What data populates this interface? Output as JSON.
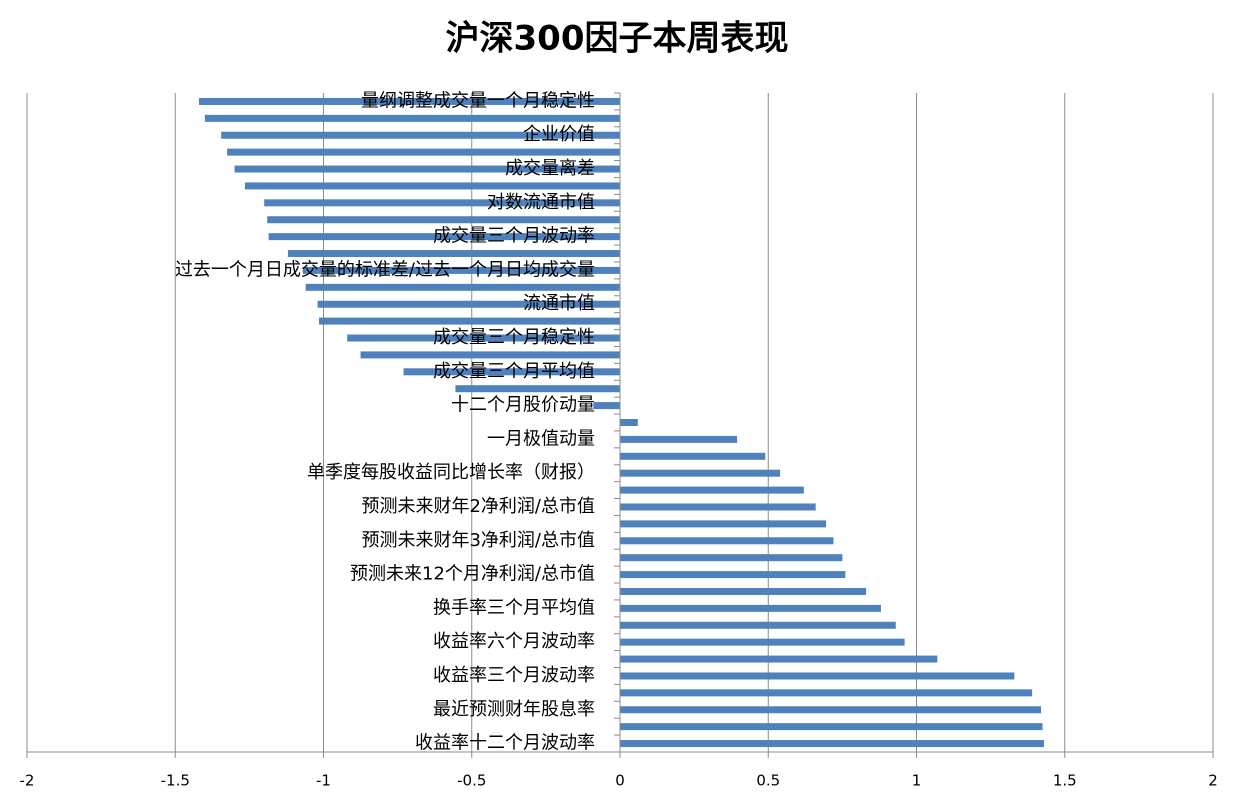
{
  "chart_data": {
    "type": "barh",
    "title": "沪深300因子本周表现",
    "categories": [
      "量纲调整成交量一个月稳定性",
      null,
      "企业价值",
      null,
      "成交量离差",
      null,
      "对数流通市值",
      null,
      "成交量三个月波动率",
      null,
      "过去一个月日成交量的标准差/过去一个月日均成交量",
      null,
      "流通市值",
      null,
      "成交量三个月稳定性",
      null,
      "成交量三个月平均值",
      null,
      "十二个月股价动量",
      null,
      "一月极值动量",
      null,
      "单季度每股收益同比增长率（财报）",
      null,
      "预测未来财年2净利润/总市值",
      null,
      "预测未来财年3净利润/总市值",
      null,
      "预测未来12个月净利润/总市值",
      null,
      "换手率三个月平均值",
      null,
      "收益率六个月波动率",
      null,
      "收益率三个月波动率",
      null,
      "最近预测财年股息率",
      null,
      "收益率十二个月波动率"
    ],
    "values": [
      -1.42,
      -1.4,
      -1.345,
      -1.325,
      -1.3,
      -1.265,
      -1.2,
      -1.19,
      -1.185,
      -1.12,
      -1.07,
      -1.06,
      -1.02,
      -1.015,
      -0.92,
      -0.875,
      -0.73,
      -0.555,
      -0.09,
      0.06,
      0.395,
      0.49,
      0.54,
      0.62,
      0.66,
      0.695,
      0.72,
      0.75,
      0.76,
      0.83,
      0.88,
      0.93,
      0.96,
      1.07,
      1.33,
      1.39,
      1.42,
      1.425,
      1.43
    ],
    "color": "#4f81bd",
    "xlim": [
      -2,
      2
    ],
    "xticks": [
      -2,
      -1.5,
      -1,
      -0.5,
      0,
      0.5,
      1,
      1.5,
      2
    ],
    "grid": true
  }
}
